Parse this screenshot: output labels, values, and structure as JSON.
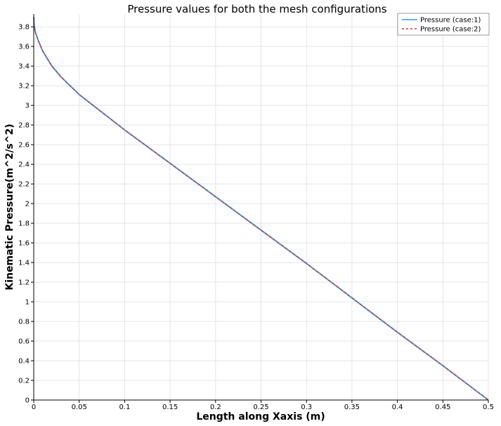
{
  "chart_data": {
    "type": "line",
    "title": "Pressure values for both the mesh configurations",
    "xlabel": "Length along Xaxis (m)",
    "ylabel": "Kinematic Pressure(m^2/s^2)",
    "xlim": [
      0,
      0.5
    ],
    "ylim": [
      0,
      3.93
    ],
    "grid": true,
    "legend_position": "top-right",
    "x_ticks": [
      "0",
      "0.05",
      "0.1",
      "0.15",
      "0.2",
      "0.25",
      "0.3",
      "0.35",
      "0.4",
      "0.45",
      "0.5"
    ],
    "y_ticks": [
      "0",
      "0.2",
      "0.4",
      "0.6",
      "0.8",
      "1",
      "1.2",
      "1.4",
      "1.6",
      "1.8",
      "2",
      "2.2",
      "2.4",
      "2.6",
      "2.8",
      "3",
      "3.2",
      "3.4",
      "3.6",
      "3.8"
    ],
    "x": [
      0,
      0.0005,
      0.001,
      0.002,
      0.005,
      0.01,
      0.02,
      0.03,
      0.05,
      0.075,
      0.1,
      0.15,
      0.2,
      0.25,
      0.3,
      0.35,
      0.4,
      0.45,
      0.5
    ],
    "series": [
      {
        "name": "Pressure (case:1)",
        "color": "#3a9ad9",
        "style": "solid",
        "values": [
          3.9,
          3.82,
          3.78,
          3.74,
          3.66,
          3.55,
          3.4,
          3.29,
          3.11,
          2.93,
          2.75,
          2.41,
          2.07,
          1.73,
          1.39,
          1.04,
          0.69,
          0.35,
          0.0
        ]
      },
      {
        "name": "Pressure (case:2)",
        "color": "#e0322f",
        "style": "dashed",
        "values": [
          3.9,
          3.82,
          3.78,
          3.74,
          3.66,
          3.55,
          3.4,
          3.29,
          3.11,
          2.93,
          2.75,
          2.41,
          2.07,
          1.73,
          1.39,
          1.04,
          0.69,
          0.35,
          0.0
        ]
      }
    ]
  }
}
